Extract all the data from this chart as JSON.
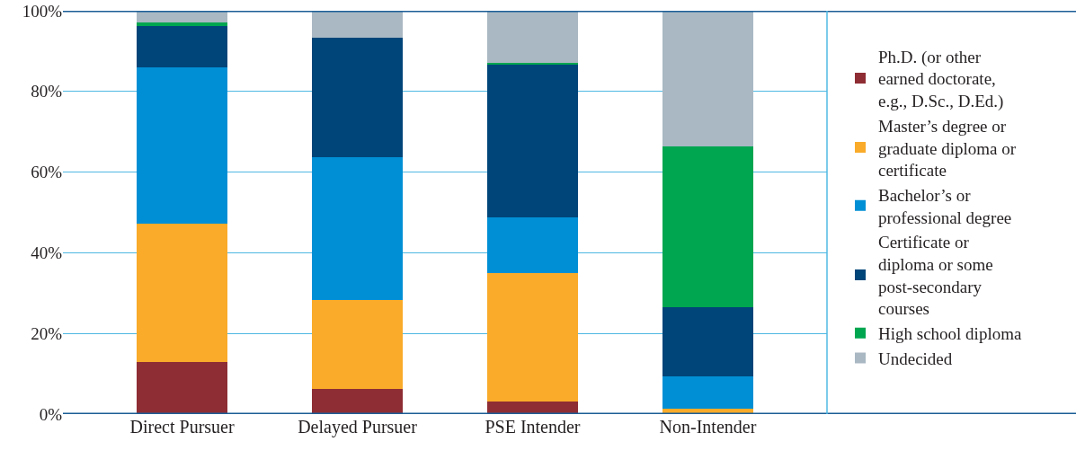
{
  "chart_data": {
    "type": "bar",
    "stacked": true,
    "categories": [
      "Direct Pursuer",
      "Delayed Pursuer",
      "PSE Intender",
      "Non-Intender"
    ],
    "series": [
      {
        "name": "Ph.D. (or other earned doctorate, e.g., D.Sc., D.Ed.)",
        "color": "#8e2d34",
        "values": [
          13,
          6.3,
          3.1,
          0
        ]
      },
      {
        "name": "Master’s degree or graduate diploma or certificate",
        "color": "#f9ab29",
        "values": [
          34.3,
          22.0,
          31.9,
          1.3
        ]
      },
      {
        "name": "Bachelor’s or professional degree",
        "color": "#008fd5",
        "values": [
          38.6,
          35.3,
          13.7,
          8.1
        ]
      },
      {
        "name": "Certificate or diploma or some post-secondary courses",
        "color": "#004579",
        "values": [
          10.3,
          29.7,
          37.9,
          17.2
        ]
      },
      {
        "name": "High school diploma",
        "color": "#00a650",
        "values": [
          0.9,
          0,
          0.5,
          39.7
        ]
      },
      {
        "name": "Undecided",
        "color": "#a9b8c3",
        "values": [
          2.9,
          6.7,
          12.9,
          33.7
        ]
      }
    ],
    "ylim": [
      0,
      100
    ],
    "yticks": [
      {
        "value": 0,
        "label": "0%"
      },
      {
        "value": 20,
        "label": "20%"
      },
      {
        "value": 40,
        "label": "40%"
      },
      {
        "value": 60,
        "label": "60%"
      },
      {
        "value": 80,
        "label": "80%"
      },
      {
        "value": 100,
        "label": "100%"
      }
    ],
    "grid": "y",
    "legend": "right"
  }
}
